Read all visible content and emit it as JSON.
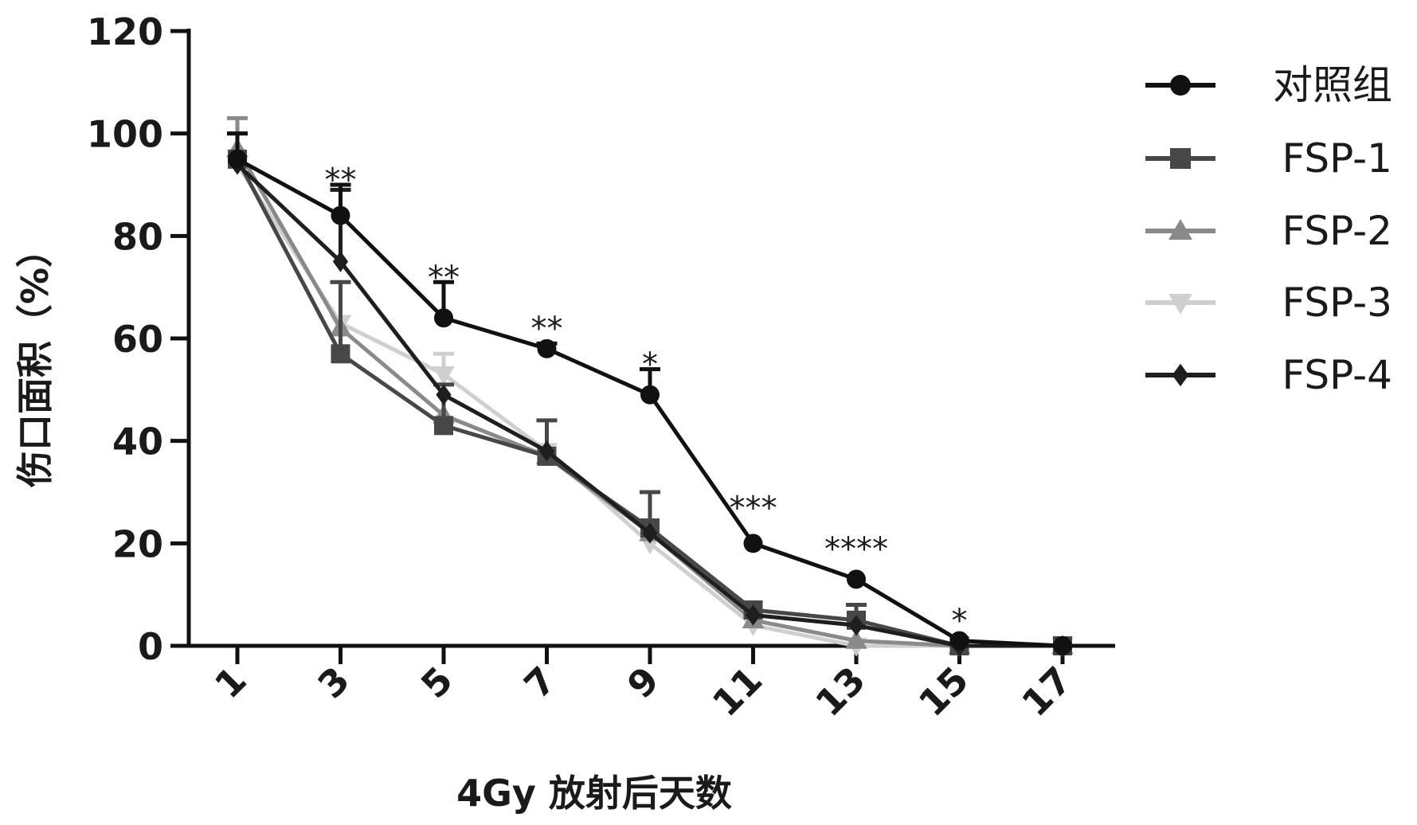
{
  "chart_data": {
    "type": "line",
    "title": "",
    "xlabel": "4Gy 放射后天数",
    "ylabel": "伤口面积（%）",
    "x": [
      1,
      3,
      5,
      7,
      9,
      11,
      13,
      15,
      17
    ],
    "x_tick_labels": [
      "1",
      "3",
      "5",
      "7",
      "9",
      "11",
      "13",
      "15",
      "17"
    ],
    "xlim": [
      1,
      17
    ],
    "ylim": [
      0,
      120
    ],
    "y_ticks": [
      0,
      20,
      40,
      60,
      80,
      100,
      120
    ],
    "y_tick_labels": [
      "0",
      "20",
      "40",
      "60",
      "80",
      "100",
      "120"
    ],
    "grid": false,
    "legend_position": "right",
    "series": [
      {
        "name": "对照组",
        "marker": "circle",
        "color": "#111111",
        "values": [
          95,
          84,
          64,
          58,
          49,
          20,
          13,
          1,
          0
        ],
        "error": [
          5,
          6,
          7,
          1,
          5,
          0,
          0,
          0,
          0
        ]
      },
      {
        "name": "FSP-1",
        "marker": "square",
        "color": "#474747",
        "values": [
          95,
          57,
          43,
          37,
          23,
          7,
          5,
          0,
          0
        ],
        "error": [
          5,
          14,
          8,
          7,
          7,
          0,
          3,
          0,
          0
        ]
      },
      {
        "name": "FSP-2",
        "marker": "triangle-up",
        "color": "#8a8a8a",
        "values": [
          97,
          62,
          45,
          37,
          22,
          5,
          1,
          0,
          0
        ],
        "error": [
          6,
          0,
          0,
          0,
          0,
          0,
          0,
          0,
          0
        ]
      },
      {
        "name": "FSP-3",
        "marker": "triangle-down",
        "color": "#cfcfcf",
        "values": [
          94,
          63,
          53,
          38,
          20,
          4,
          0,
          0,
          0
        ],
        "error": [
          0,
          0,
          4,
          0,
          0,
          0,
          0,
          0,
          0
        ]
      },
      {
        "name": "FSP-4",
        "marker": "diamond",
        "color": "#1e1e1e",
        "values": [
          94,
          75,
          49,
          38,
          22,
          6,
          4,
          0,
          0
        ],
        "error": [
          0,
          14,
          0,
          0,
          0,
          0,
          0,
          0,
          0
        ]
      }
    ],
    "annotations": [
      {
        "x": 3,
        "y": 91,
        "text": "**"
      },
      {
        "x": 5,
        "y": 72,
        "text": "**"
      },
      {
        "x": 7,
        "y": 62,
        "text": "**"
      },
      {
        "x": 9,
        "y": 55,
        "text": "*"
      },
      {
        "x": 11,
        "y": 27,
        "text": "***"
      },
      {
        "x": 13,
        "y": 19,
        "text": "****"
      },
      {
        "x": 15,
        "y": 5,
        "text": "*"
      }
    ]
  }
}
